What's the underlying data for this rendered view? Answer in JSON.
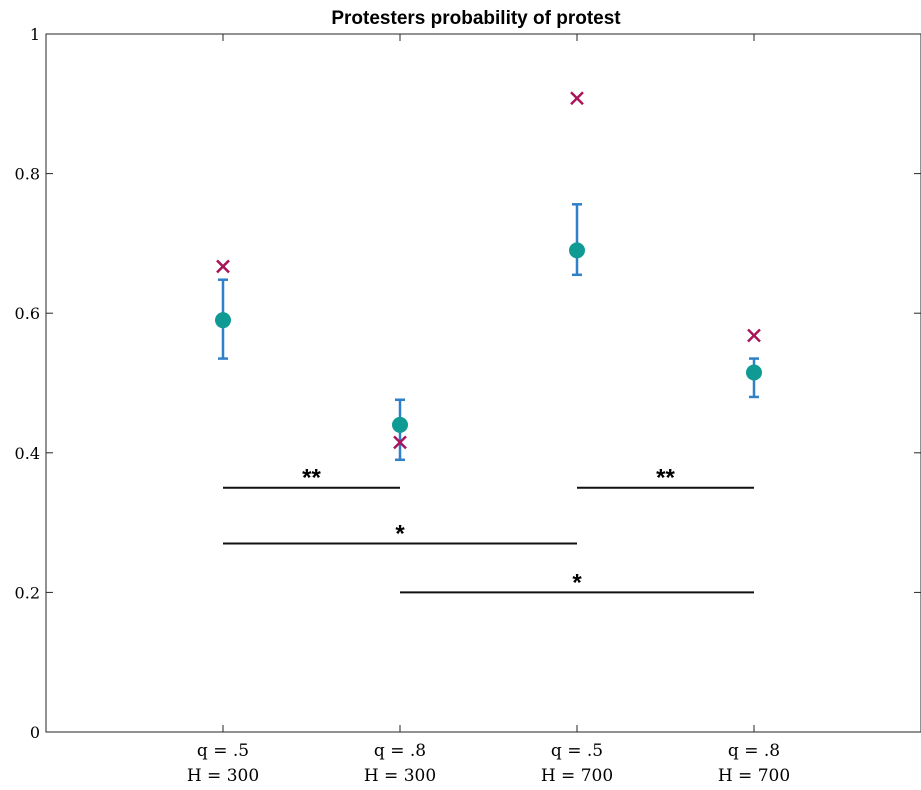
{
  "chart_data": {
    "type": "scatter",
    "title": "Protesters probability of protest",
    "xlabel": "",
    "ylabel": "",
    "ylim": [
      0,
      1
    ],
    "yticks": [
      "0",
      "0.2",
      "0.4",
      "0.6",
      "0.8",
      "1"
    ],
    "categories": [
      {
        "line1": "q = .5",
        "line2": "H = 300"
      },
      {
        "line1": "q = .8",
        "line2": "H = 300"
      },
      {
        "line1": "q = .5",
        "line2": "H = 700"
      },
      {
        "line1": "q = .8",
        "line2": "H = 700"
      }
    ],
    "series": [
      {
        "marker": "circle",
        "color": "#0f9a94",
        "values": [
          0.59,
          0.44,
          0.69,
          0.515
        ],
        "error_low": [
          0.535,
          0.39,
          0.655,
          0.48
        ],
        "error_high": [
          0.648,
          0.476,
          0.756,
          0.535
        ],
        "error_color": "#2f7fc9"
      },
      {
        "marker": "x",
        "color": "#a8155a",
        "values": [
          0.667,
          0.415,
          0.908,
          0.568
        ]
      }
    ],
    "significance": [
      {
        "from": 0,
        "to": 1,
        "y": 0.35,
        "label": "**"
      },
      {
        "from": 2,
        "to": 3,
        "y": 0.35,
        "label": "**"
      },
      {
        "from": 0,
        "to": 2,
        "y": 0.27,
        "label": "*"
      },
      {
        "from": 1,
        "to": 3,
        "y": 0.2,
        "label": "*"
      }
    ]
  }
}
